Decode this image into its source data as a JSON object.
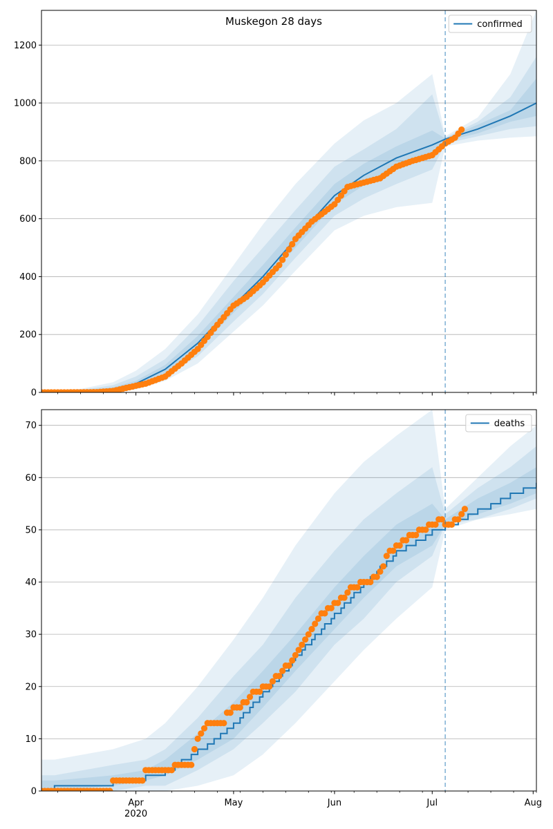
{
  "chart_data": [
    {
      "type": "line",
      "title": "Muskegon 28 days",
      "legend": {
        "labels": [
          "confirmed"
        ],
        "placement": "top-right"
      },
      "xlim": [
        "2020-03-03",
        "2020-08-02"
      ],
      "ylim": [
        0,
        1320
      ],
      "y_ticks": [
        0,
        200,
        400,
        600,
        800,
        1000,
        1200
      ],
      "x_ticks": [
        {
          "date": "2020-04-01",
          "label": "Apr",
          "sublabel": "2020"
        },
        {
          "date": "2020-05-01",
          "label": "May",
          "sublabel": ""
        },
        {
          "date": "2020-06-01",
          "label": "Jun",
          "sublabel": ""
        },
        {
          "date": "2020-07-01",
          "label": "Jul",
          "sublabel": ""
        },
        {
          "date": "2020-08-01",
          "label": "Aug",
          "sublabel": ""
        }
      ],
      "grid": "y",
      "forecast_start": "2020-07-05",
      "colors": {
        "fit": "#1f77b4",
        "observed": "#ff7f0e",
        "band": "#1f77b4"
      },
      "fit": {
        "name": "confirmed",
        "x": [
          "2020-03-03",
          "2020-03-15",
          "2020-03-25",
          "2020-04-01",
          "2020-04-10",
          "2020-04-20",
          "2020-05-01",
          "2020-05-10",
          "2020-05-20",
          "2020-06-01",
          "2020-06-10",
          "2020-06-20",
          "2020-07-01",
          "2020-07-05",
          "2020-07-15",
          "2020-07-25",
          "2020-08-02"
        ],
        "y": [
          0,
          3,
          12,
          30,
          80,
          170,
          300,
          400,
          530,
          680,
          750,
          810,
          855,
          875,
          910,
          955,
          1000
        ]
      },
      "bands": [
        {
          "lower": [
            0,
            0,
            0,
            10,
            40,
            100,
            210,
            300,
            420,
            560,
            610,
            640,
            655,
            850,
            870,
            880,
            885
          ],
          "upper": [
            6,
            12,
            35,
            75,
            150,
            270,
            440,
            580,
            720,
            860,
            940,
            1000,
            1100,
            885,
            950,
            1100,
            1320
          ]
        },
        {
          "lower": [
            0,
            1,
            4,
            18,
            55,
            125,
            245,
            340,
            465,
            610,
            670,
            720,
            770,
            860,
            885,
            910,
            920
          ],
          "upper": [
            4,
            8,
            25,
            55,
            115,
            230,
            385,
            500,
            630,
            780,
            840,
            910,
            1030,
            880,
            935,
            1020,
            1160
          ]
        },
        {
          "lower": [
            0,
            2,
            8,
            24,
            68,
            150,
            275,
            375,
            500,
            650,
            715,
            770,
            815,
            868,
            895,
            935,
            955
          ],
          "upper": [
            3,
            5,
            18,
            40,
            95,
            195,
            330,
            440,
            570,
            720,
            790,
            850,
            905,
            878,
            925,
            975,
            1085
          ]
        }
      ],
      "observed": {
        "x": [
          "2020-03-03",
          "2020-03-10",
          "2020-03-20",
          "2020-03-25",
          "2020-03-30",
          "2020-04-04",
          "2020-04-10",
          "2020-04-15",
          "2020-04-20",
          "2020-04-25",
          "2020-05-01",
          "2020-05-05",
          "2020-05-10",
          "2020-05-15",
          "2020-05-20",
          "2020-05-25",
          "2020-06-01",
          "2020-06-05",
          "2020-06-10",
          "2020-06-15",
          "2020-06-20",
          "2020-06-25",
          "2020-07-01",
          "2020-07-05",
          "2020-07-08",
          "2020-07-10"
        ],
        "y": [
          0,
          0,
          1,
          5,
          18,
          30,
          55,
          100,
          150,
          220,
          300,
          330,
          380,
          440,
          530,
          590,
          650,
          710,
          725,
          740,
          780,
          800,
          820,
          860,
          880,
          908
        ]
      }
    },
    {
      "type": "line",
      "title": "",
      "legend": {
        "labels": [
          "deaths"
        ],
        "placement": "top-right"
      },
      "xlim": [
        "2020-03-03",
        "2020-08-02"
      ],
      "ylim": [
        0,
        73
      ],
      "y_ticks": [
        0,
        10,
        20,
        30,
        40,
        50,
        60,
        70
      ],
      "x_ticks": [
        {
          "date": "2020-04-01",
          "label": "Apr",
          "sublabel": "2020"
        },
        {
          "date": "2020-05-01",
          "label": "May",
          "sublabel": ""
        },
        {
          "date": "2020-06-01",
          "label": "Jun",
          "sublabel": ""
        },
        {
          "date": "2020-07-01",
          "label": "Jul",
          "sublabel": ""
        },
        {
          "date": "2020-08-01",
          "label": "Aug",
          "sublabel": ""
        }
      ],
      "grid": "y",
      "forecast_start": "2020-07-05",
      "colors": {
        "fit": "#1f77b4",
        "observed": "#ff7f0e",
        "band": "#1f77b4"
      },
      "fit": {
        "name": "deaths",
        "x": [
          "2020-03-03",
          "2020-03-07",
          "2020-03-25",
          "2020-04-04",
          "2020-04-10",
          "2020-04-20",
          "2020-05-01",
          "2020-05-10",
          "2020-05-20",
          "2020-06-01",
          "2020-06-10",
          "2020-06-20",
          "2020-07-01",
          "2020-07-05",
          "2020-07-15",
          "2020-07-25",
          "2020-08-02"
        ],
        "y": [
          0,
          1,
          2,
          3,
          4,
          8,
          13,
          19,
          26,
          34,
          40,
          46,
          50,
          51,
          54,
          57,
          59
        ]
      },
      "bands": [
        {
          "lower": [
            0,
            0,
            0,
            0,
            0,
            1,
            3,
            7,
            13,
            21,
            27,
            33,
            39,
            50,
            52,
            53,
            54
          ],
          "upper": [
            6,
            6,
            8,
            10,
            13,
            20,
            29,
            37,
            47,
            57,
            63,
            68,
            73,
            54,
            60,
            66,
            70
          ]
        },
        {
          "lower": [
            0,
            0,
            0,
            1,
            1,
            4,
            8,
            13,
            19,
            28,
            33,
            40,
            45,
            51,
            52,
            54,
            56
          ],
          "upper": [
            3,
            3,
            5,
            6,
            8,
            14,
            22,
            28,
            37,
            46,
            52,
            57,
            62,
            53,
            58,
            62,
            66
          ]
        },
        {
          "lower": [
            0,
            0,
            1,
            2,
            3,
            6,
            10,
            16,
            23,
            31,
            37,
            43,
            47,
            51,
            53,
            55,
            57
          ],
          "upper": [
            2,
            2,
            3,
            4,
            6,
            11,
            17,
            23,
            30,
            39,
            45,
            51,
            55,
            52,
            56,
            59,
            62
          ]
        }
      ],
      "observed": {
        "x": [
          "2020-03-03",
          "2020-03-24",
          "2020-03-25",
          "2020-04-03",
          "2020-04-04",
          "2020-04-12",
          "2020-04-13",
          "2020-04-18",
          "2020-04-20",
          "2020-04-21",
          "2020-04-23",
          "2020-04-28",
          "2020-04-29",
          "2020-05-05",
          "2020-05-06",
          "2020-05-08",
          "2020-05-12",
          "2020-05-16",
          "2020-05-18",
          "2020-05-20",
          "2020-05-22",
          "2020-05-24",
          "2020-05-27",
          "2020-06-01",
          "2020-06-04",
          "2020-06-06",
          "2020-06-12",
          "2020-06-15",
          "2020-06-18",
          "2020-06-25",
          "2020-06-29",
          "2020-07-01",
          "2020-07-04",
          "2020-07-05",
          "2020-07-07",
          "2020-07-10",
          "2020-07-11"
        ],
        "y": [
          0,
          0,
          2,
          2,
          4,
          4,
          5,
          5,
          10,
          11,
          13,
          13,
          15,
          17,
          18,
          19,
          20,
          23,
          24,
          26,
          28,
          30,
          33,
          36,
          37,
          39,
          40,
          42,
          46,
          49,
          50,
          51,
          52,
          51,
          51,
          53,
          54
        ]
      }
    }
  ]
}
